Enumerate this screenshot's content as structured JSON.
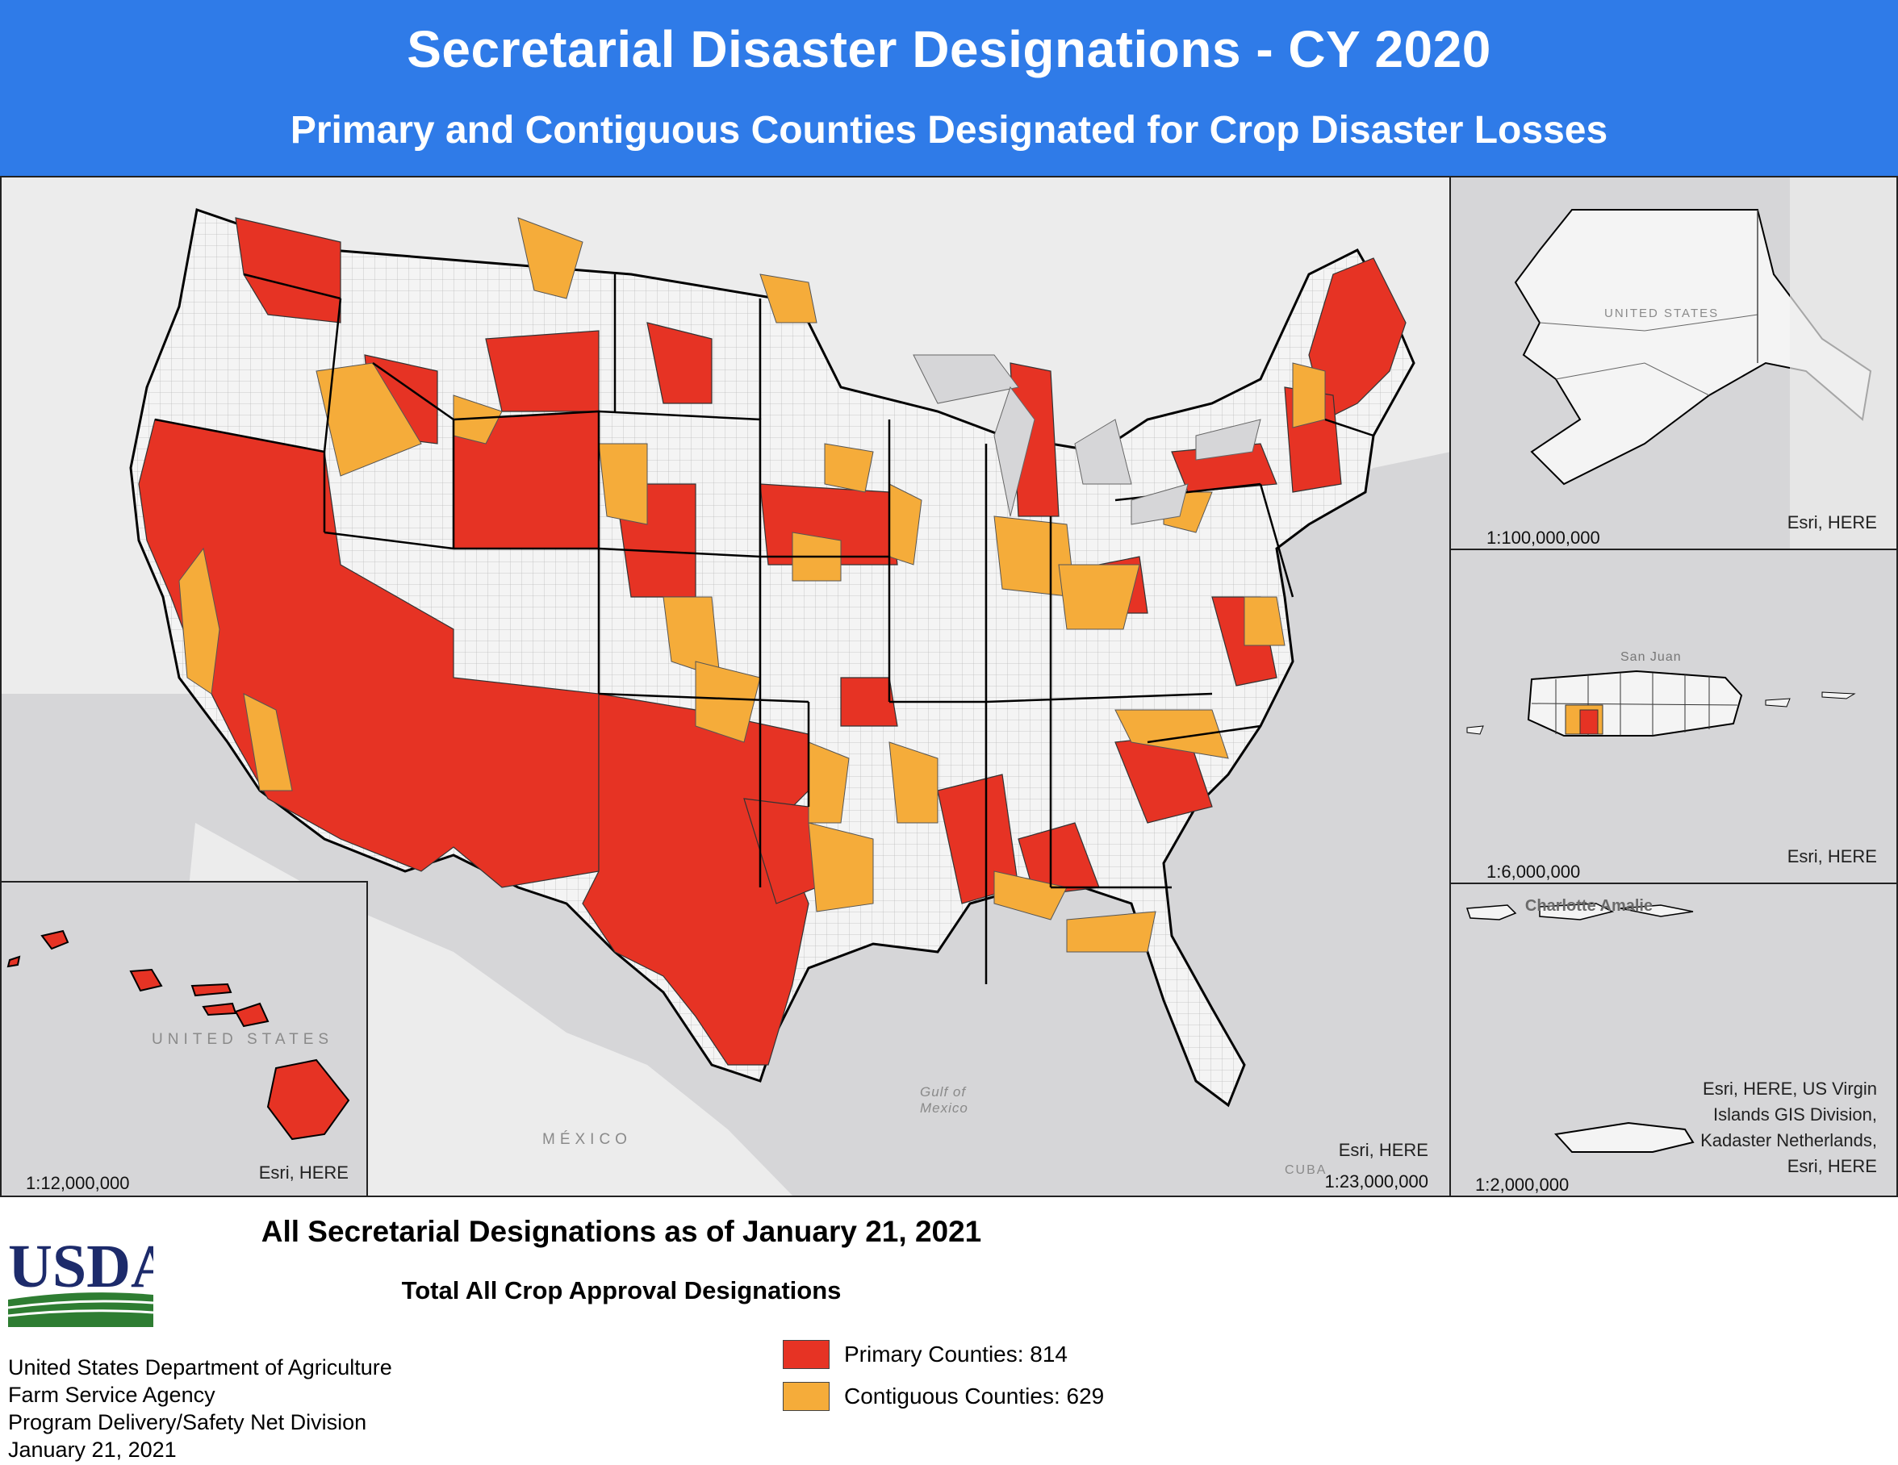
{
  "header": {
    "title": "Secretarial Disaster Designations - CY 2020",
    "subtitle": "Primary and Contiguous Counties Designated for Crop Disaster Losses"
  },
  "colors": {
    "header_bg": "#2f7be8",
    "primary": "#e63324",
    "contiguous": "#f5ac3a",
    "undesignated": "#f4f4f4",
    "water": "#d6d6d8"
  },
  "main_map": {
    "scale": "1:23,000,000",
    "credit": "Esri, HERE",
    "labels": {
      "mexico": "MÉXICO",
      "gulf": "Gulf of Mexico",
      "cuba": "CUBA"
    }
  },
  "alaska_inset": {
    "scale": "1:100,000,000",
    "credit": "Esri, HERE",
    "label": "UNITED STATES"
  },
  "puerto_rico_inset": {
    "scale": "1:6,000,000",
    "credit": "Esri, HERE",
    "label": "San Juan"
  },
  "virgin_islands_inset": {
    "scale": "1:2,000,000",
    "credit": "Esri, HERE, US Virgin Islands GIS Division, Kadaster Netherlands, Esri, HERE",
    "label": "Charlotte Amalie"
  },
  "hawaii_inset": {
    "scale": "1:12,000,000",
    "credit": "Esri, HERE",
    "label": "UNITED STATES"
  },
  "footer": {
    "title": "All Secretarial Designations as of January 21, 2021",
    "subtitle": "Total All Crop Approval Designations"
  },
  "legend": [
    {
      "label": "Primary Counties: 814",
      "color": "#e63324",
      "count": 814
    },
    {
      "label": "Contiguous Counties: 629",
      "color": "#f5ac3a",
      "count": 629
    }
  ],
  "logo": {
    "text": "USDA"
  },
  "agency": [
    "United States Department of Agriculture",
    "Farm Service Agency",
    "Program Delivery/Safety Net Division",
    "January 21, 2021"
  ]
}
